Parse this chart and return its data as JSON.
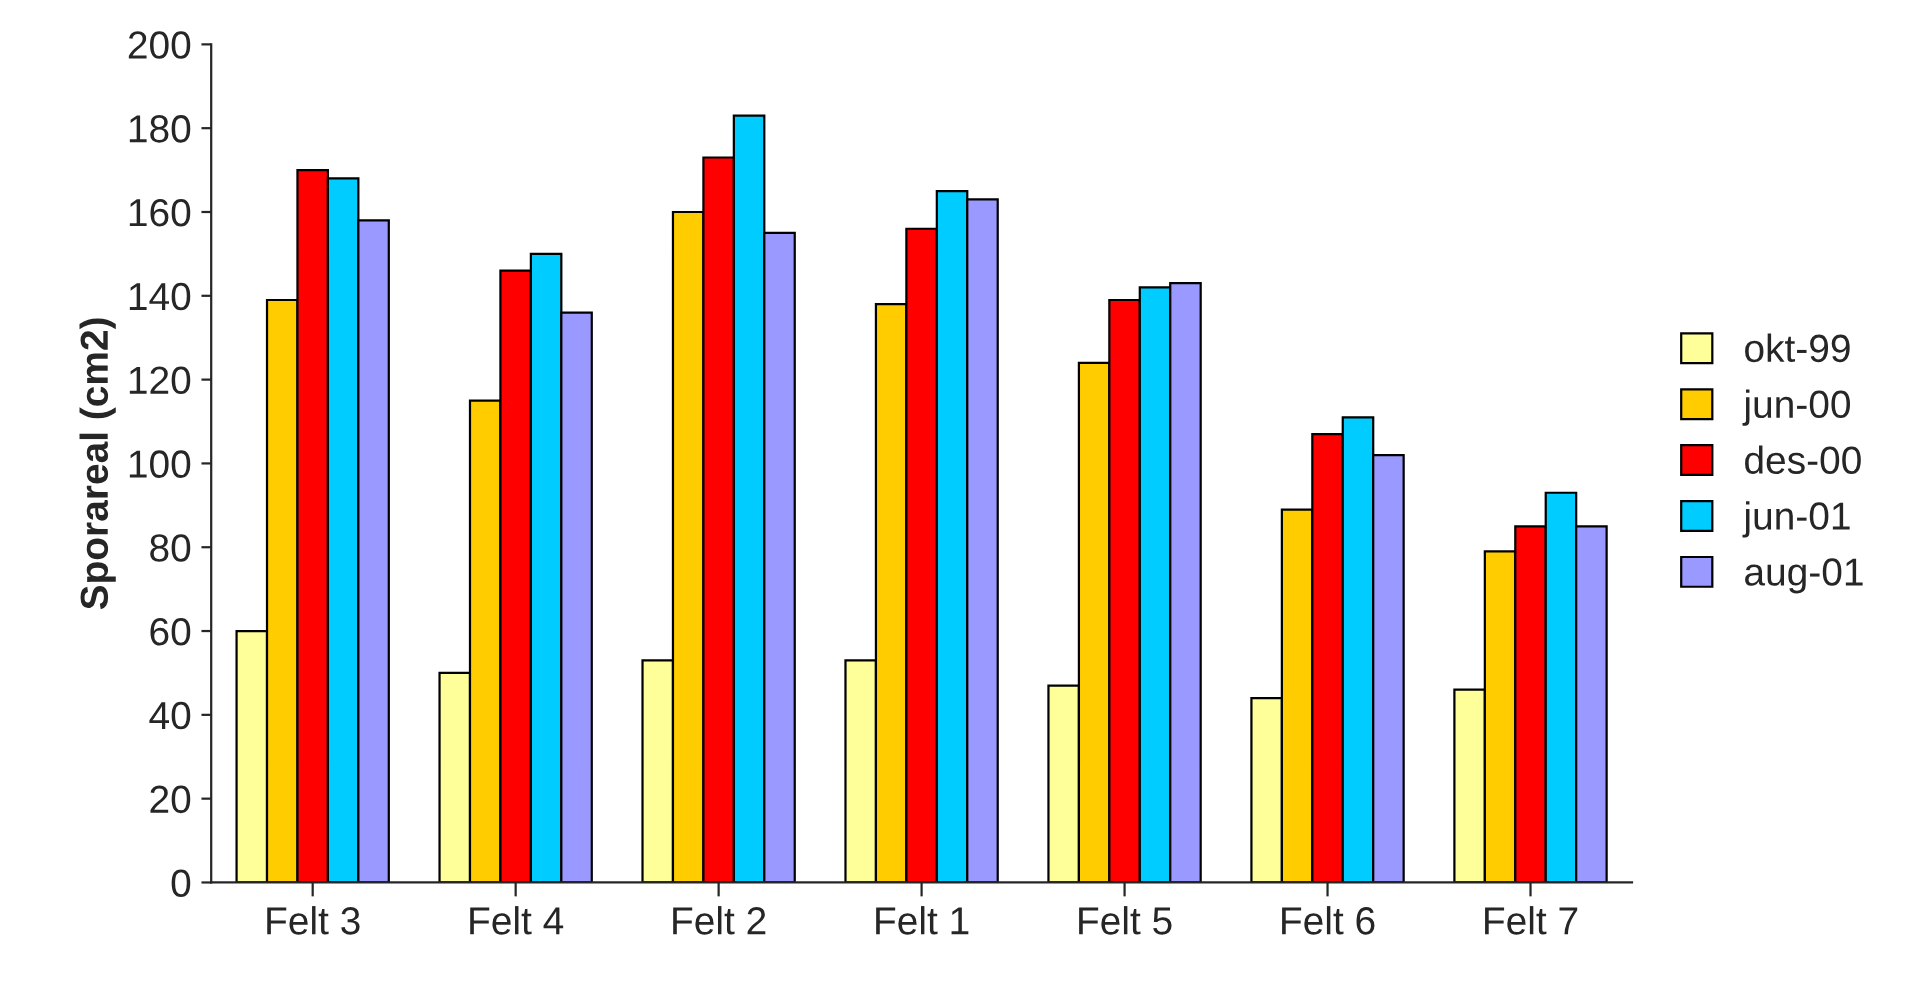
{
  "chart_data": {
    "type": "bar",
    "ylabel": "Sporareal (cm2)",
    "categories": [
      "Felt 3",
      "Felt 4",
      "Felt 2",
      "Felt 1",
      "Felt 5",
      "Felt 6",
      "Felt 7"
    ],
    "series": [
      {
        "name": "okt-99",
        "color": "#ffff99",
        "values": [
          60,
          50,
          53,
          53,
          47,
          44,
          46
        ]
      },
      {
        "name": "jun-00",
        "color": "#ffcc00",
        "values": [
          139,
          115,
          160,
          138,
          124,
          89,
          79
        ]
      },
      {
        "name": "des-00",
        "color": "#ff0000",
        "values": [
          170,
          146,
          173,
          156,
          139,
          107,
          85
        ]
      },
      {
        "name": "jun-01",
        "color": "#00ccff",
        "values": [
          168,
          150,
          183,
          165,
          142,
          111,
          93
        ]
      },
      {
        "name": "aug-01",
        "color": "#9999ff",
        "values": [
          158,
          136,
          155,
          163,
          143,
          102,
          85
        ]
      }
    ],
    "ylim": [
      0,
      200
    ],
    "yticks": [
      0,
      20,
      40,
      60,
      80,
      100,
      120,
      140,
      160,
      180,
      200
    ],
    "grid": false,
    "legend": "right"
  }
}
